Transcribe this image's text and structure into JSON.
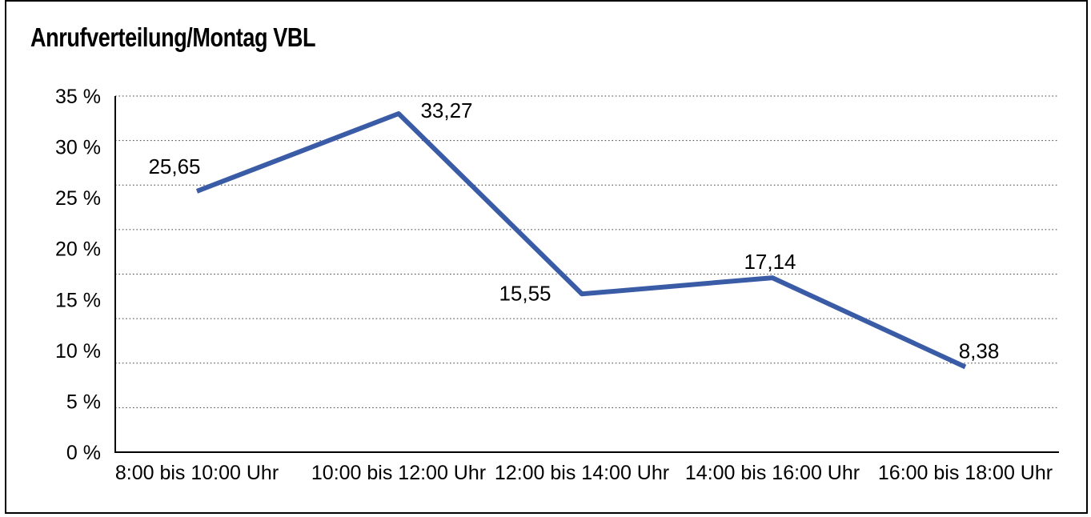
{
  "title": "Anrufverteilung/Montag VBL",
  "colors": {
    "line": "#3A5BA5",
    "grid": "#404040",
    "axis": "#000000",
    "text": "#000000",
    "background": "#ffffff",
    "frame_border": "#000000"
  },
  "chart_data": {
    "type": "line",
    "title": "Anrufverteilung/Montag VBL",
    "categories": [
      "8:00 bis 10:00 Uhr",
      "10:00 bis 12:00 Uhr",
      "12:00 bis 14:00 Uhr",
      "14:00 bis 16:00 Uhr",
      "16:00 bis 18:00 Uhr"
    ],
    "values": [
      25.65,
      33.27,
      15.55,
      17.14,
      8.38
    ],
    "data_labels": [
      "25,65",
      "33,27",
      "15,55",
      "17,14",
      "8,38"
    ],
    "y_tick_labels": [
      "35 %",
      "30 %",
      "25 %",
      "20 %",
      "15 %",
      "10 %",
      "5 %",
      "0 %"
    ],
    "ylim": [
      0,
      35
    ],
    "y_tick_step": 5,
    "xlabel": "",
    "ylabel": "",
    "grid": "horizontal-dotted",
    "legend": "none"
  }
}
